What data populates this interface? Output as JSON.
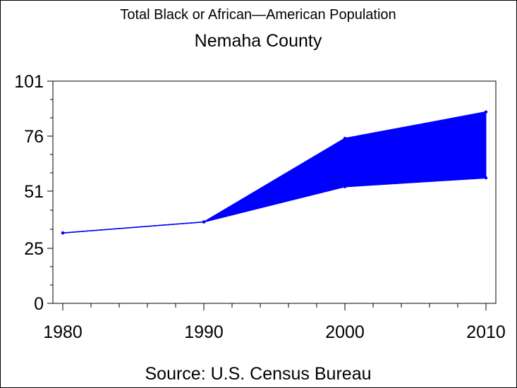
{
  "chart_data": {
    "type": "area",
    "title": "Total Black or African—American Population",
    "subtitle": "Nemaha County",
    "footnote": "Source: U.S. Census Bureau",
    "xlabel": "",
    "ylabel": "",
    "x": [
      1980,
      1990,
      2000,
      2010
    ],
    "x_tick_labels": [
      "1980",
      "1990",
      "2000",
      "2010"
    ],
    "y_tick_labels": [
      "0",
      "25",
      "51",
      "76",
      "101"
    ],
    "y_ticks": [
      0,
      25,
      51,
      76,
      101
    ],
    "ylim": [
      0,
      101
    ],
    "xlim": [
      1980,
      2010
    ],
    "series": [
      {
        "values": [
          32,
          37,
          53,
          57
        ]
      },
      {
        "values": [
          32,
          37,
          75,
          87
        ]
      }
    ],
    "grid": false,
    "legend": "none",
    "colors": {
      "series": "#0000ff",
      "axes": "#000000",
      "background": "#ffffff"
    }
  }
}
